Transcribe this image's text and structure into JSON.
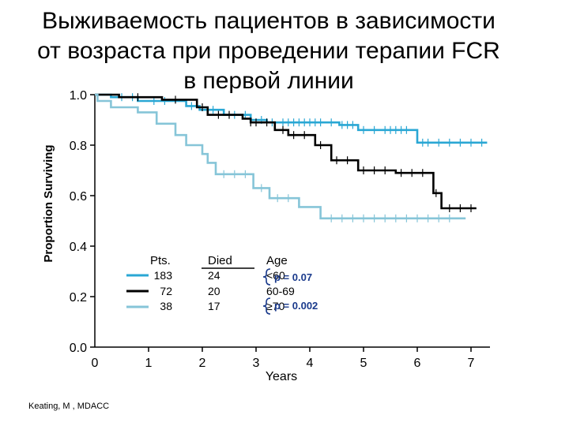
{
  "title_lines": [
    "Выживаемость пациентов в зависимости",
    "от возраста при проведении терапии FCR",
    "в первой линии"
  ],
  "chart_data": {
    "type": "line",
    "xlabel": "Years",
    "ylabel": "Proportion Surviving",
    "xlim": [
      0,
      7
    ],
    "ylim": [
      0,
      1
    ],
    "x_ticks": [
      "0",
      "1",
      "2",
      "3",
      "4",
      "5",
      "6",
      "7"
    ],
    "y_ticks": [
      "0.0",
      "0.2",
      "0.4",
      "0.6",
      "0.8",
      "1.0"
    ],
    "grid": false,
    "series": [
      {
        "color": "#2aa7d4",
        "points": [
          [
            0,
            1.0
          ],
          [
            0.3,
            1.0
          ],
          [
            0.3,
            0.99
          ],
          [
            0.8,
            0.99
          ],
          [
            0.8,
            0.975
          ],
          [
            1.7,
            0.975
          ],
          [
            1.7,
            0.955
          ],
          [
            1.95,
            0.955
          ],
          [
            1.95,
            0.94
          ],
          [
            2.4,
            0.94
          ],
          [
            2.4,
            0.92
          ],
          [
            2.9,
            0.92
          ],
          [
            2.9,
            0.9
          ],
          [
            3.2,
            0.9
          ],
          [
            3.2,
            0.89
          ],
          [
            4.55,
            0.89
          ],
          [
            4.55,
            0.88
          ],
          [
            4.9,
            0.88
          ],
          [
            4.9,
            0.86
          ],
          [
            6.0,
            0.86
          ],
          [
            6.0,
            0.81
          ],
          [
            7.3,
            0.81
          ]
        ],
        "censored": [
          0.5,
          0.7,
          1.1,
          1.3,
          1.8,
          2.2,
          2.6,
          2.8,
          3.1,
          3.3,
          3.5,
          3.6,
          3.7,
          3.8,
          3.9,
          4.0,
          4.1,
          4.2,
          4.4,
          4.6,
          4.7,
          4.8,
          5.0,
          5.2,
          5.4,
          5.5,
          5.6,
          5.7,
          5.8,
          6.1,
          6.2,
          6.4,
          6.6,
          6.8,
          7.0,
          7.2
        ]
      },
      {
        "color": "#000000",
        "points": [
          [
            0,
            1.0
          ],
          [
            0.45,
            1.0
          ],
          [
            0.45,
            0.99
          ],
          [
            1.25,
            0.99
          ],
          [
            1.25,
            0.98
          ],
          [
            1.9,
            0.98
          ],
          [
            1.9,
            0.95
          ],
          [
            2.1,
            0.95
          ],
          [
            2.1,
            0.92
          ],
          [
            2.75,
            0.92
          ],
          [
            2.75,
            0.905
          ],
          [
            2.9,
            0.905
          ],
          [
            2.9,
            0.89
          ],
          [
            3.35,
            0.89
          ],
          [
            3.35,
            0.86
          ],
          [
            3.6,
            0.86
          ],
          [
            3.6,
            0.84
          ],
          [
            4.1,
            0.84
          ],
          [
            4.1,
            0.8
          ],
          [
            4.4,
            0.8
          ],
          [
            4.4,
            0.74
          ],
          [
            4.9,
            0.74
          ],
          [
            4.9,
            0.7
          ],
          [
            5.6,
            0.7
          ],
          [
            5.6,
            0.69
          ],
          [
            6.3,
            0.69
          ],
          [
            6.3,
            0.61
          ],
          [
            6.45,
            0.61
          ],
          [
            6.45,
            0.55
          ],
          [
            7.1,
            0.55
          ]
        ],
        "censored": [
          0.8,
          1.5,
          2.0,
          2.3,
          2.5,
          2.9,
          3.0,
          3.2,
          3.5,
          3.7,
          3.9,
          4.2,
          4.5,
          4.7,
          5.0,
          5.2,
          5.4,
          5.7,
          5.9,
          6.1,
          6.35,
          6.6,
          6.8,
          7.0
        ]
      },
      {
        "color": "#86c5d8",
        "points": [
          [
            0,
            1.0
          ],
          [
            0.05,
            1.0
          ],
          [
            0.05,
            0.975
          ],
          [
            0.3,
            0.975
          ],
          [
            0.3,
            0.95
          ],
          [
            0.8,
            0.95
          ],
          [
            0.8,
            0.93
          ],
          [
            1.15,
            0.93
          ],
          [
            1.15,
            0.885
          ],
          [
            1.5,
            0.885
          ],
          [
            1.5,
            0.84
          ],
          [
            1.7,
            0.84
          ],
          [
            1.7,
            0.8
          ],
          [
            2.0,
            0.8
          ],
          [
            2.0,
            0.765
          ],
          [
            2.1,
            0.765
          ],
          [
            2.1,
            0.73
          ],
          [
            2.25,
            0.73
          ],
          [
            2.25,
            0.685
          ],
          [
            2.95,
            0.685
          ],
          [
            2.95,
            0.63
          ],
          [
            3.25,
            0.63
          ],
          [
            3.25,
            0.59
          ],
          [
            3.8,
            0.59
          ],
          [
            3.8,
            0.555
          ],
          [
            4.2,
            0.555
          ],
          [
            4.2,
            0.51
          ],
          [
            6.9,
            0.51
          ]
        ],
        "censored": [
          2.4,
          2.6,
          2.8,
          3.1,
          3.4,
          3.6,
          4.4,
          4.6,
          4.8,
          5.0,
          5.2,
          5.4,
          5.6,
          5.8,
          6.0,
          6.2,
          6.4,
          6.6
        ]
      }
    ],
    "legend": {
      "headers": [
        "Pts.",
        "Died",
        "Age"
      ],
      "rows": [
        {
          "color": "#2aa7d4",
          "pts": "183",
          "died": "24",
          "age": "<60"
        },
        {
          "color": "#000000",
          "pts": "72",
          "died": "20",
          "age": "60-69"
        },
        {
          "color": "#86c5d8",
          "pts": "38",
          "died": "17",
          "age": "≥70"
        }
      ],
      "p_values": [
        "p = 0.07",
        "p = 0.002"
      ]
    }
  },
  "credit": "Keating, M , MDACC"
}
